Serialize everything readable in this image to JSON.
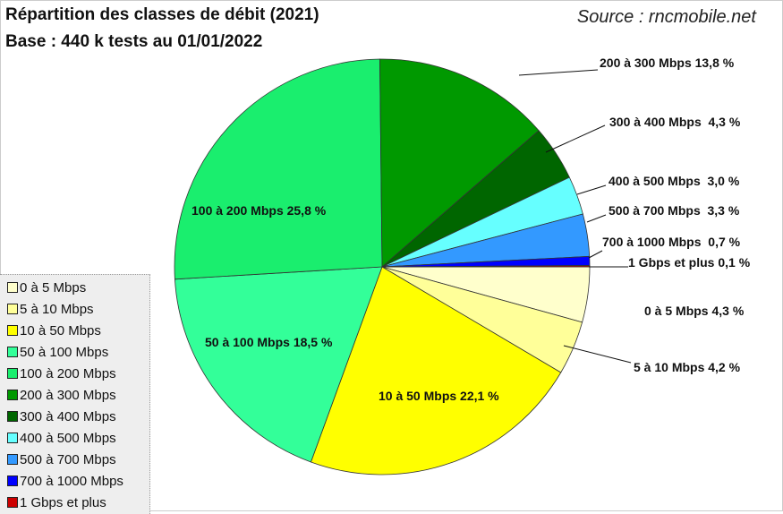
{
  "chart_data": {
    "type": "pie",
    "title": "Répartition des classes de débit (2021)",
    "subtitle": "Base : 440 k tests au 01/01/2022",
    "source": "Source : rncmobile.net",
    "start": "east, clockwise",
    "legend_position": "bottom-left",
    "slices": [
      {
        "name": "0 à 5 Mbps",
        "value": 4.3,
        "label": "0 à 5 Mbps 4,3 %",
        "color": "#ffffcc"
      },
      {
        "name": "5 à 10 Mbps",
        "value": 4.2,
        "label": "5 à 10 Mbps 4,2 %",
        "color": "#ffff99"
      },
      {
        "name": "10 à 50 Mbps",
        "value": 22.1,
        "label": "10 à 50 Mbps 22,1 %",
        "color": "#ffff00"
      },
      {
        "name": "50 à 100 Mbps",
        "value": 18.5,
        "label": "50 à 100 Mbps 18,5 %",
        "color": "#33ff99"
      },
      {
        "name": "100 à 200 Mbps",
        "value": 25.8,
        "label": "100 à 200 Mbps 25,8 %",
        "color": "#1aee6e"
      },
      {
        "name": "200 à 300 Mbps",
        "value": 13.8,
        "label": "200 à 300 Mbps 13,8 %",
        "color": "#009900"
      },
      {
        "name": "300 à 400 Mbps",
        "value": 4.3,
        "label": "300 à 400 Mbps  4,3 %",
        "color": "#006600"
      },
      {
        "name": "400 à 500 Mbps",
        "value": 3.0,
        "label": "400 à 500 Mbps  3,0 %",
        "color": "#66ffff"
      },
      {
        "name": "500 à 700 Mbps",
        "value": 3.3,
        "label": "500 à 700 Mbps  3,3 %",
        "color": "#3399ff"
      },
      {
        "name": "700 à 1000 Mbps",
        "value": 0.7,
        "label": "700 à 1000 Mbps  0,7 %",
        "color": "#0000ff"
      },
      {
        "name": "1 Gbps et plus",
        "value": 0.1,
        "label": "1 Gbps et plus 0,1 %",
        "color": "#cc0000"
      }
    ]
  }
}
